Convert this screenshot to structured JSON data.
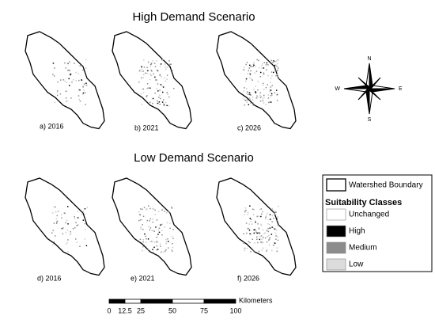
{
  "titles": [
    "High Demand Scenario",
    "Low Demand Scenario"
  ],
  "panels": [
    "a) 2016",
    "b) 2021",
    "c) 2026",
    "d) 2016",
    "e) 2021",
    "f) 2026"
  ],
  "compass": {
    "n": "N",
    "s": "S",
    "e": "E",
    "w": "W"
  },
  "legend": {
    "boundary": "Watershed Boundary",
    "heading": "Suitability Classes",
    "classes": [
      {
        "label": "Unchanged",
        "color": "#ffffff"
      },
      {
        "label": "High",
        "color": "#000000"
      },
      {
        "label": "Medium",
        "color": "#8c8c8c"
      },
      {
        "label": "Low",
        "color": "#dcdcdc"
      }
    ]
  },
  "scale_bar": {
    "unit": "Kilometers",
    "ticks": [
      0,
      12.5,
      25,
      50,
      75,
      100
    ]
  }
}
